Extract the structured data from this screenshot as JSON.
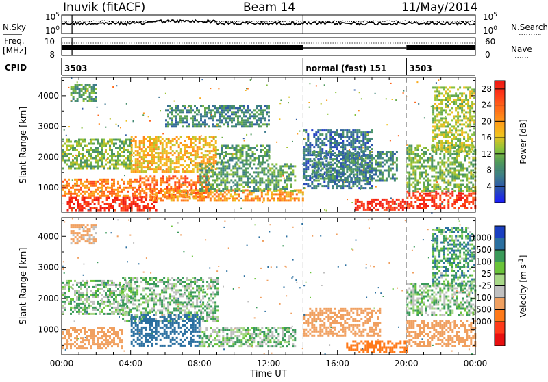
{
  "header": {
    "station": "Inuvik (fitACF)",
    "beam": "Beam 14",
    "date": "11/May/2014"
  },
  "strip_labels": {
    "nsky": "N.Sky",
    "nsearch": "N.Search",
    "freq_line1": "Freq.",
    "freq_line2": "[MHz]",
    "nave": "Nave",
    "cpid": "CPID"
  },
  "strip_ticks": {
    "noise_left": [
      "10^5",
      "10^0"
    ],
    "noise_right": [
      "10^5",
      "10^0"
    ],
    "freq_left": [
      "10",
      "8"
    ],
    "nave_right": [
      "60",
      "0"
    ]
  },
  "cpid_segments": [
    {
      "label": "3503",
      "start_hour": 0
    },
    {
      "label": "normal (fast) 151",
      "start_hour": 14
    },
    {
      "label": "3503",
      "start_hour": 20
    }
  ],
  "colors": {
    "power_scale": [
      "#1a1aff",
      "#2a4fb0",
      "#3d7d8a",
      "#4f9a5a",
      "#8cc43a",
      "#f2c21e",
      "#ff9a1a",
      "#ff6a1a",
      "#ff3a1a",
      "#ee1a14"
    ],
    "velocity_scale": [
      "#1a3fc0",
      "#2a6fa0",
      "#3a9a5a",
      "#6ac43a",
      "#a8d888",
      "#c0c0c0",
      "#f0a060",
      "#ff7a1a",
      "#ff3a1a",
      "#e81010"
    ]
  },
  "chart_data": [
    {
      "type": "heatmap",
      "name": "power",
      "ylabel": "Slant Range [km]",
      "ylim": [
        200,
        4600
      ],
      "yticks": [
        1000,
        2000,
        3000,
        4000
      ],
      "xlim_hours": [
        0,
        24
      ],
      "colorbar": {
        "label": "Power [dB]",
        "ticks": [
          4,
          8,
          12,
          16,
          20,
          24,
          28
        ],
        "range": [
          0,
          30
        ]
      },
      "bands": [
        {
          "t0": 0.3,
          "t1": 5.5,
          "r0": 250,
          "r1": 700,
          "value": 28
        },
        {
          "t0": 0.0,
          "t1": 4.5,
          "r0": 700,
          "r1": 1300,
          "value": 22
        },
        {
          "t0": 0.0,
          "t1": 4.0,
          "r0": 1600,
          "r1": 2600,
          "value": 12
        },
        {
          "t0": 4.0,
          "t1": 9.0,
          "r0": 1500,
          "r1": 2700,
          "value": 18
        },
        {
          "t0": 4.5,
          "t1": 8.5,
          "r0": 700,
          "r1": 1400,
          "value": 24
        },
        {
          "t0": 5.0,
          "t1": 14.0,
          "r0": 550,
          "r1": 950,
          "value": 20
        },
        {
          "t0": 8.0,
          "t1": 13.5,
          "r0": 900,
          "r1": 1800,
          "value": 10
        },
        {
          "t0": 9.0,
          "t1": 12.0,
          "r0": 1800,
          "r1": 2400,
          "value": 10
        },
        {
          "t0": 14.0,
          "t1": 18.0,
          "r0": 1000,
          "r1": 2900,
          "value": 6
        },
        {
          "t0": 17.0,
          "t1": 20.0,
          "r0": 300,
          "r1": 650,
          "value": 28
        },
        {
          "t0": 14.5,
          "t1": 19.5,
          "r0": 1200,
          "r1": 2200,
          "value": 8
        },
        {
          "t0": 20.0,
          "t1": 24.0,
          "r0": 350,
          "r1": 900,
          "value": 27
        },
        {
          "t0": 20.0,
          "t1": 24.0,
          "r0": 900,
          "r1": 2400,
          "value": 12
        },
        {
          "t0": 21.5,
          "t1": 24.0,
          "r0": 2200,
          "r1": 4300,
          "value": 14
        },
        {
          "t0": 0.5,
          "t1": 2.0,
          "r0": 3800,
          "r1": 4400,
          "value": 10
        },
        {
          "t0": 6.0,
          "t1": 12.0,
          "r0": 3000,
          "r1": 3700,
          "value": 8
        }
      ]
    },
    {
      "type": "heatmap",
      "name": "velocity",
      "ylabel": "Slant Range [km]",
      "xlabel": "Time UT",
      "ylim": [
        200,
        4600
      ],
      "yticks": [
        1000,
        2000,
        3000,
        4000
      ],
      "xlim_hours": [
        0,
        24
      ],
      "xticks": [
        "00:00",
        "04:00",
        "08:00",
        "12:00",
        "16:00",
        "20:00",
        "00:00"
      ],
      "colorbar": {
        "label": "Velocity [m s^-1]",
        "ticks": [
          "1000",
          "500",
          "100",
          "25",
          "-25",
          "-100",
          "-500",
          "-1000"
        ]
      },
      "bands": [
        {
          "t0": 0.0,
          "t1": 3.5,
          "r0": 400,
          "r1": 1100,
          "value": -300
        },
        {
          "t0": 0.0,
          "t1": 4.0,
          "r0": 1500,
          "r1": 2600,
          "value": 0
        },
        {
          "t0": 3.5,
          "t1": 9.0,
          "r0": 1300,
          "r1": 2700,
          "value": 0
        },
        {
          "t0": 4.0,
          "t1": 8.0,
          "r0": 500,
          "r1": 1500,
          "value": 300
        },
        {
          "t0": 8.0,
          "t1": 13.5,
          "r0": 500,
          "r1": 1100,
          "value": 0
        },
        {
          "t0": 14.0,
          "t1": 18.5,
          "r0": 800,
          "r1": 1700,
          "value": -200
        },
        {
          "t0": 16.5,
          "t1": 20.0,
          "r0": 300,
          "r1": 650,
          "value": -700
        },
        {
          "t0": 20.0,
          "t1": 24.0,
          "r0": 500,
          "r1": 1300,
          "value": -400
        },
        {
          "t0": 20.0,
          "t1": 24.0,
          "r0": 1500,
          "r1": 2500,
          "value": 0
        },
        {
          "t0": 21.5,
          "t1": 24.0,
          "r0": 2400,
          "r1": 4300,
          "value": 60
        },
        {
          "t0": 0.5,
          "t1": 2.0,
          "r0": 3800,
          "r1": 4400,
          "value": -150
        }
      ]
    }
  ]
}
